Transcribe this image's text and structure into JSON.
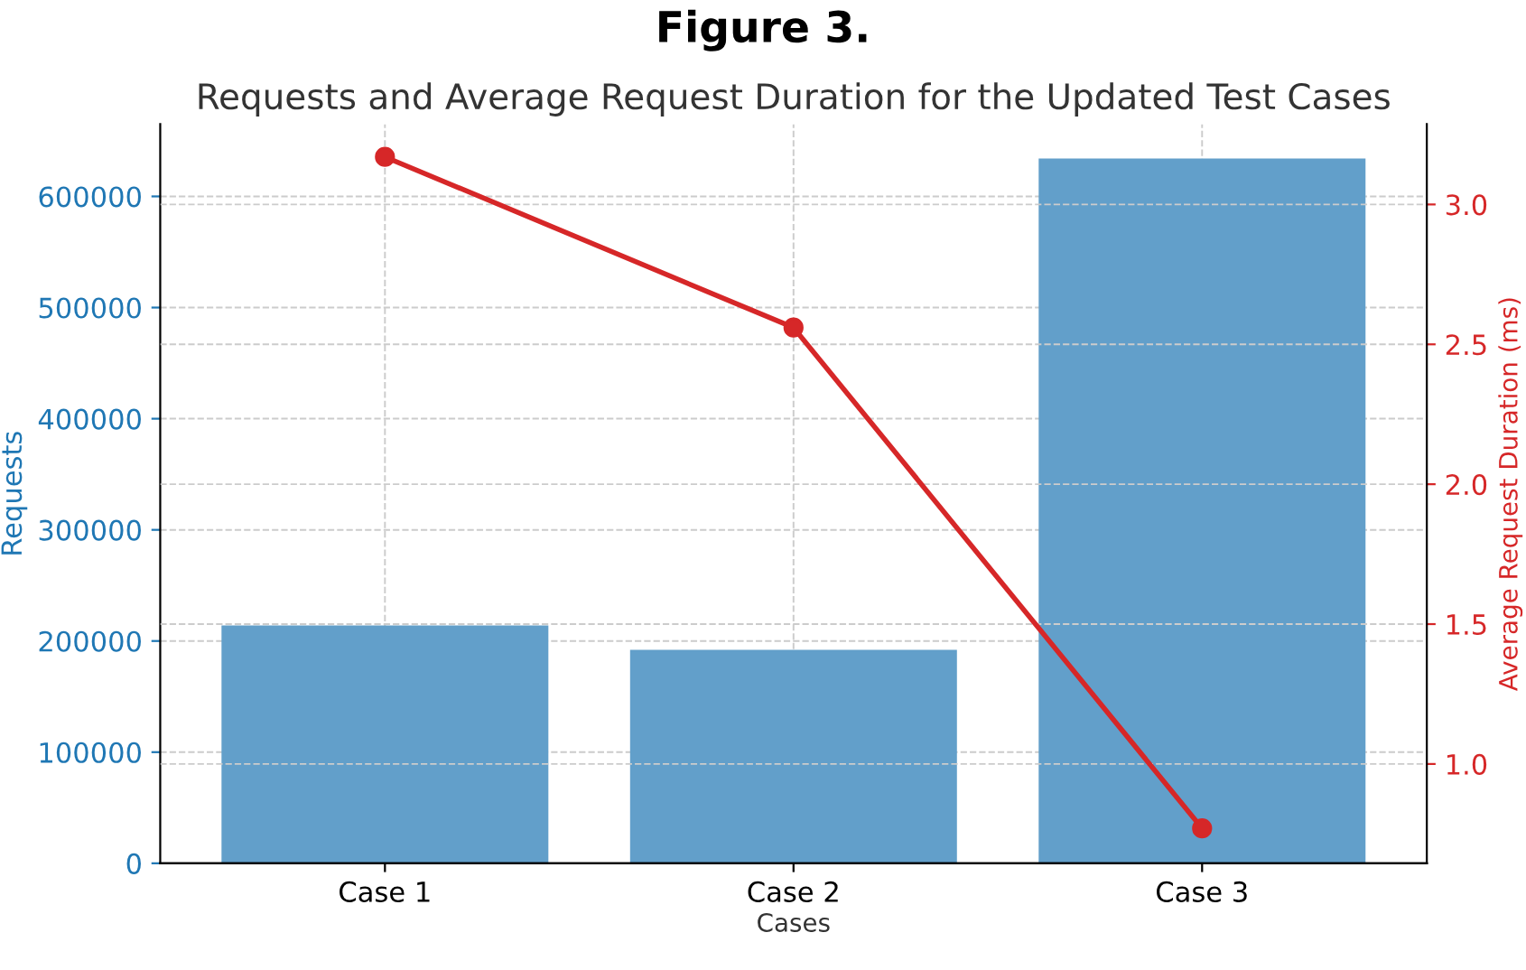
{
  "chart_data": {
    "type": "bar",
    "title": "Figure 3.",
    "subtitle": "Requests and Average Request Duration for the Updated Test Cases",
    "xlabel": "Cases",
    "ylabel": "Requests",
    "y2label": "Average Request Duration (ms)",
    "categories": [
      "Case 1",
      "Case 2",
      "Case 3"
    ],
    "series": [
      {
        "color": "#629fca",
        "values": [
          214000,
          192000,
          634000
        ]
      },
      {
        "type": "line",
        "axis": "y2",
        "color": "#d62728",
        "values": [
          3.17,
          2.56,
          0.77
        ],
        "marker": "circle",
        "line_style": "solid"
      }
    ],
    "ylim": [
      0,
      665000
    ],
    "yticks": [
      0,
      100000,
      200000,
      300000,
      400000,
      500000,
      600000
    ],
    "y2lim": [
      0.645,
      3.287
    ],
    "y2ticks": [
      {
        "value": 1.0,
        "label": "1.0"
      },
      {
        "value": 1.5,
        "label": "1.5"
      },
      {
        "value": 2.0,
        "label": "2.0"
      },
      {
        "value": 2.5,
        "label": "2.5"
      },
      {
        "value": 3.0,
        "label": "3.0"
      }
    ],
    "grid": true,
    "legend": false
  }
}
